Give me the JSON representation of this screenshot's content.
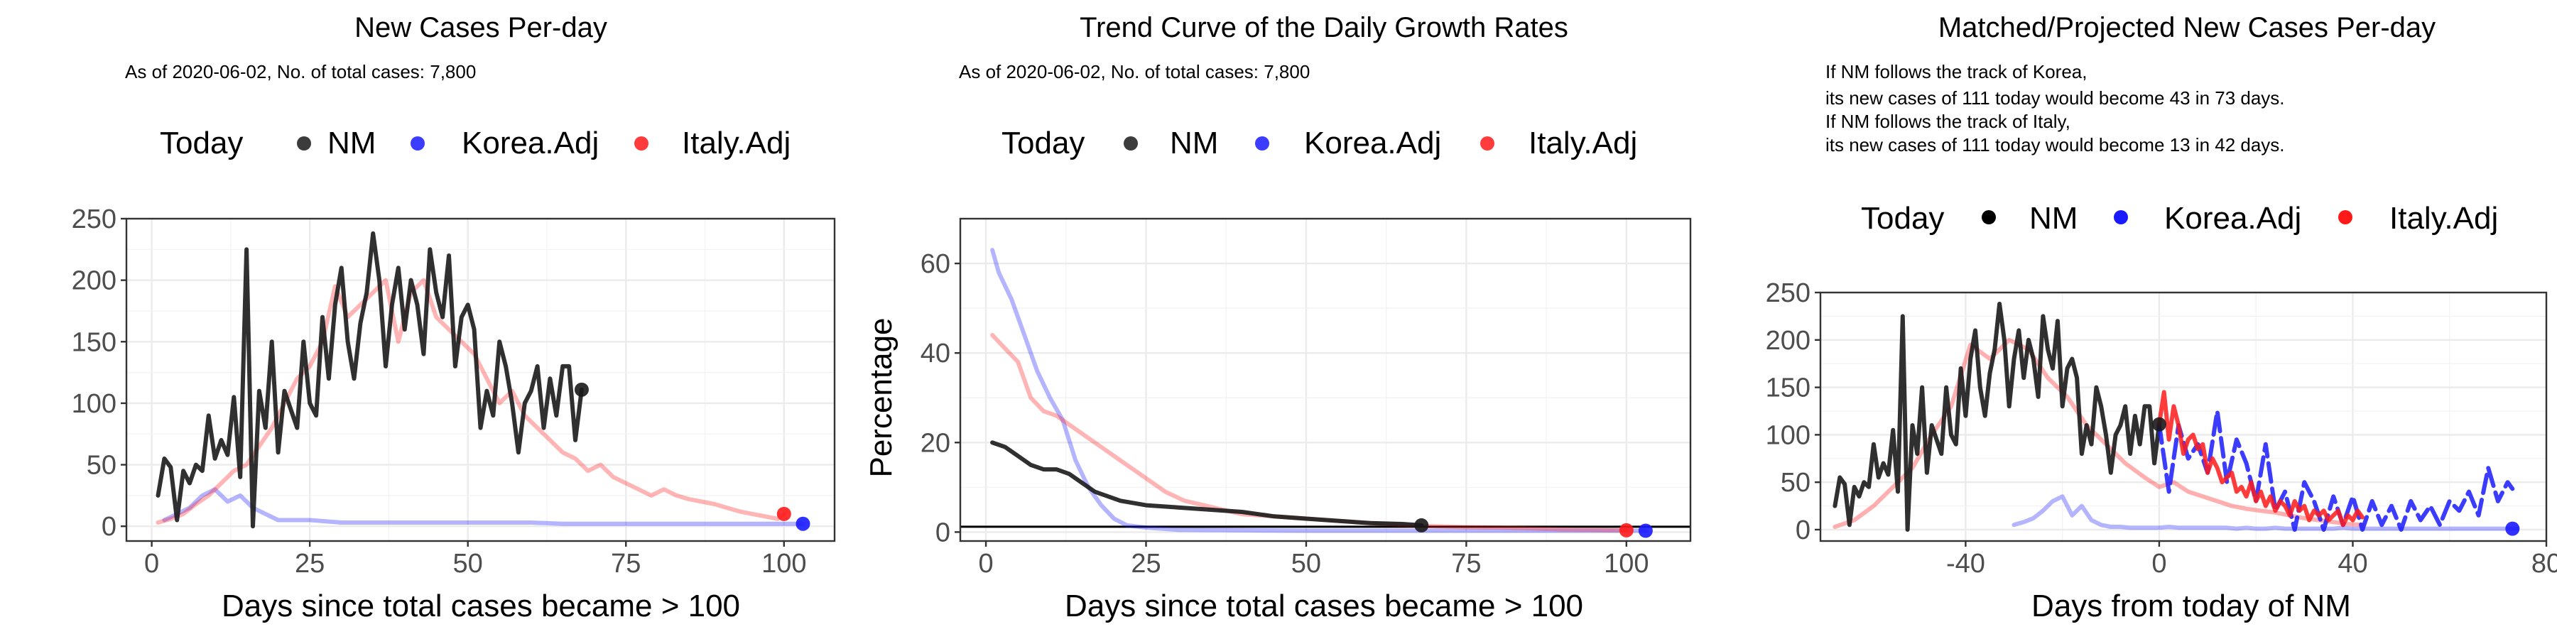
{
  "colors": {
    "nm": "#1a1a1a",
    "korea": "#1a1aff",
    "italy": "#ff1a1a",
    "grid": "#ebebeb",
    "panel_border": "#333333"
  },
  "chart_data": [
    {
      "type": "line",
      "title": "New Cases Per-day",
      "subtitle": "As of 2020-06-02, No. of total cases: 7,800",
      "xlabel": "Days since total cases became > 100",
      "ylabel": "",
      "xlim": [
        -4,
        108
      ],
      "ylim": [
        -12,
        250
      ],
      "xticks": [
        0,
        25,
        50,
        75,
        100
      ],
      "yticks": [
        0,
        50,
        100,
        150,
        200,
        250
      ],
      "grid": true,
      "legend": {
        "title": "Today",
        "position": "top",
        "entries": [
          "NM",
          "Korea.Adj",
          "Italy.Adj"
        ]
      },
      "series": [
        {
          "name": "NM",
          "x": [
            1,
            2,
            3,
            4,
            5,
            6,
            7,
            8,
            9,
            10,
            11,
            12,
            13,
            14,
            15,
            16,
            17,
            18,
            19,
            20,
            21,
            22,
            23,
            24,
            25,
            26,
            27,
            28,
            29,
            30,
            31,
            32,
            33,
            34,
            35,
            36,
            37,
            38,
            39,
            40,
            41,
            42,
            43,
            44,
            45,
            46,
            47,
            48,
            49,
            50,
            51,
            52,
            53,
            54,
            55,
            56,
            57,
            58,
            59,
            60,
            61,
            62,
            63,
            64,
            65,
            66,
            67,
            68
          ],
          "values": [
            25,
            55,
            48,
            5,
            45,
            35,
            50,
            45,
            90,
            55,
            70,
            58,
            105,
            40,
            225,
            0,
            110,
            80,
            150,
            60,
            110,
            95,
            80,
            150,
            100,
            90,
            170,
            120,
            180,
            210,
            150,
            120,
            165,
            190,
            238,
            200,
            130,
            180,
            210,
            160,
            200,
            180,
            140,
            225,
            190,
            170,
            220,
            130,
            170,
            180,
            160,
            80,
            110,
            90,
            150,
            130,
            100,
            60,
            100,
            110,
            130,
            80,
            120,
            90,
            130,
            130,
            70,
            111
          ]
        },
        {
          "name": "Korea.Adj",
          "x": [
            2,
            4,
            6,
            8,
            10,
            12,
            14,
            16,
            18,
            20,
            25,
            30,
            35,
            40,
            45,
            50,
            55,
            60,
            65,
            70,
            75,
            80,
            85,
            90,
            95,
            100,
            103
          ],
          "values": [
            5,
            10,
            15,
            25,
            30,
            20,
            25,
            15,
            10,
            5,
            5,
            3,
            3,
            3,
            3,
            3,
            3,
            3,
            2,
            2,
            2,
            2,
            2,
            2,
            2,
            2,
            2
          ]
        },
        {
          "name": "Italy.Adj",
          "x": [
            1,
            3,
            5,
            7,
            9,
            11,
            13,
            15,
            17,
            19,
            21,
            23,
            25,
            27,
            29,
            31,
            33,
            35,
            37,
            39,
            41,
            43,
            45,
            47,
            49,
            51,
            53,
            55,
            57,
            59,
            61,
            63,
            65,
            67,
            69,
            71,
            73,
            75,
            77,
            79,
            81,
            83,
            85,
            87,
            89,
            91,
            93,
            95,
            97,
            99,
            100
          ],
          "values": [
            3,
            6,
            10,
            18,
            25,
            35,
            45,
            50,
            65,
            80,
            100,
            120,
            130,
            150,
            195,
            170,
            180,
            190,
            200,
            150,
            190,
            200,
            170,
            160,
            150,
            140,
            120,
            100,
            110,
            90,
            80,
            70,
            60,
            55,
            45,
            50,
            40,
            35,
            30,
            25,
            30,
            25,
            22,
            20,
            18,
            15,
            12,
            10,
            8,
            6,
            10
          ]
        }
      ],
      "today_points": [
        {
          "name": "NM",
          "x": 68,
          "y": 111
        },
        {
          "name": "Korea.Adj",
          "x": 103,
          "y": 2
        },
        {
          "name": "Italy.Adj",
          "x": 100,
          "y": 10
        }
      ]
    },
    {
      "type": "line",
      "title": "Trend Curve of the Daily Growth Rates",
      "subtitle": "As of 2020-06-02, No. of total cases: 7,800",
      "xlabel": "Days since total cases became > 100",
      "ylabel": "Percentage",
      "xlim": [
        -4,
        110
      ],
      "ylim": [
        -2,
        70
      ],
      "xticks": [
        0,
        25,
        50,
        75,
        100
      ],
      "yticks": [
        0,
        20,
        40,
        60
      ],
      "grid": true,
      "hline": 1.2,
      "legend": {
        "title": "Today",
        "position": "top",
        "entries": [
          "NM",
          "Korea.Adj",
          "Italy.Adj"
        ]
      },
      "series": [
        {
          "name": "NM",
          "x": [
            1,
            3,
            5,
            7,
            9,
            11,
            13,
            15,
            17,
            19,
            21,
            23,
            25,
            30,
            35,
            40,
            45,
            50,
            55,
            60,
            65,
            68
          ],
          "values": [
            20,
            19,
            17,
            15,
            14,
            14,
            13,
            11,
            9,
            8,
            7,
            6.5,
            6,
            5.5,
            5,
            4.5,
            3.5,
            3,
            2.5,
            2,
            1.8,
            1.5
          ]
        },
        {
          "name": "Korea.Adj",
          "x": [
            1,
            2,
            4,
            6,
            8,
            10,
            12,
            14,
            16,
            18,
            20,
            22,
            25,
            30,
            40,
            50,
            60,
            70,
            80,
            90,
            100,
            103
          ],
          "values": [
            63,
            58,
            52,
            44,
            36,
            30,
            25,
            16,
            10,
            6,
            3,
            1.5,
            1,
            0.5,
            0.4,
            0.3,
            0.3,
            0.3,
            0.3,
            0.3,
            0.3,
            0.3
          ]
        },
        {
          "name": "Italy.Adj",
          "x": [
            1,
            3,
            5,
            7,
            9,
            11,
            13,
            15,
            17,
            19,
            21,
            23,
            25,
            28,
            31,
            34,
            37,
            40,
            45,
            50,
            55,
            60,
            65,
            70,
            75,
            80,
            85,
            90,
            95,
            100
          ],
          "values": [
            44,
            41,
            38,
            30,
            27,
            26,
            24,
            22,
            20,
            18,
            16,
            14,
            12,
            9,
            7,
            6,
            5,
            4,
            3.5,
            3,
            2.5,
            2,
            1.6,
            1.3,
            1.1,
            1,
            0.8,
            0.6,
            0.5,
            0.4
          ]
        }
      ],
      "today_points": [
        {
          "name": "NM",
          "x": 68,
          "y": 1.5
        },
        {
          "name": "Korea.Adj",
          "x": 103,
          "y": 0.3
        },
        {
          "name": "Italy.Adj",
          "x": 100,
          "y": 0.4
        }
      ]
    },
    {
      "type": "line",
      "title": "Matched/Projected New Cases Per-day",
      "annotations": [
        "If NM follows the track of Korea,",
        "its new cases of 111 today would become 43 in 73 days.",
        "If NM follows the track of Italy,",
        "its new cases of 111 today would become 13 in 42 days."
      ],
      "xlabel": "Days from today of NM",
      "ylabel": "",
      "xlim": [
        -70,
        80
      ],
      "ylim": [
        -12,
        250
      ],
      "xticks": [
        -40,
        0,
        40,
        80
      ],
      "yticks": [
        0,
        50,
        100,
        150,
        200,
        250
      ],
      "grid": true,
      "legend": {
        "title": "Today",
        "position": "top",
        "entries": [
          "NM",
          "Korea.Adj",
          "Italy.Adj"
        ]
      },
      "series": [
        {
          "name": "NM",
          "x": [
            -67,
            -66,
            -65,
            -64,
            -63,
            -62,
            -61,
            -60,
            -59,
            -58,
            -57,
            -56,
            -55,
            -54,
            -53,
            -52,
            -51,
            -50,
            -49,
            -48,
            -47,
            -46,
            -45,
            -44,
            -43,
            -42,
            -41,
            -40,
            -39,
            -38,
            -37,
            -36,
            -35,
            -34,
            -33,
            -32,
            -31,
            -30,
            -29,
            -28,
            -27,
            -26,
            -25,
            -24,
            -23,
            -22,
            -21,
            -20,
            -19,
            -18,
            -17,
            -16,
            -15,
            -14,
            -13,
            -12,
            -11,
            -10,
            -9,
            -8,
            -7,
            -6,
            -5,
            -4,
            -3,
            -2,
            -1,
            0
          ],
          "values": [
            25,
            55,
            48,
            5,
            45,
            35,
            50,
            45,
            90,
            55,
            70,
            58,
            105,
            40,
            225,
            0,
            110,
            80,
            150,
            60,
            110,
            95,
            80,
            150,
            100,
            90,
            170,
            120,
            180,
            210,
            150,
            120,
            165,
            190,
            238,
            200,
            130,
            180,
            210,
            160,
            200,
            180,
            140,
            225,
            190,
            170,
            220,
            130,
            170,
            180,
            160,
            80,
            110,
            90,
            150,
            130,
            100,
            60,
            100,
            110,
            130,
            80,
            120,
            90,
            130,
            130,
            70,
            111
          ]
        },
        {
          "name": "Korea.Adj",
          "x": [
            -30,
            -28,
            -26,
            -24,
            -22,
            -20,
            -18,
            -16,
            -14,
            -12,
            -10,
            -8,
            -6,
            -4,
            -2,
            0,
            2,
            4,
            6,
            8,
            10,
            12,
            14,
            16,
            18,
            20,
            22,
            24,
            26,
            28,
            30,
            32,
            34,
            36,
            38,
            40,
            42,
            44,
            46,
            48,
            50,
            52,
            54,
            56,
            58,
            60,
            62,
            64,
            66,
            68,
            70,
            72,
            74
          ],
          "values": [
            5,
            8,
            12,
            20,
            30,
            35,
            15,
            25,
            10,
            5,
            3,
            3,
            2,
            2,
            2,
            2,
            3,
            2,
            2,
            2,
            2,
            2,
            2,
            1,
            2,
            1,
            1,
            2,
            1,
            1,
            1,
            1,
            1,
            1,
            2,
            1,
            1,
            1,
            1,
            1,
            1,
            1,
            1,
            1,
            1,
            1,
            1,
            1,
            1,
            1,
            1,
            1,
            1
          ]
        },
        {
          "name": "Korea.Adj (projected)",
          "x": [
            0,
            2,
            4,
            6,
            8,
            10,
            12,
            14,
            16,
            18,
            20,
            22,
            24,
            26,
            28,
            30,
            32,
            34,
            36,
            38,
            40,
            42,
            44,
            46,
            48,
            50,
            52,
            54,
            56,
            58,
            60,
            62,
            64,
            66,
            68,
            70,
            72,
            73
          ],
          "values": [
            111,
            40,
            110,
            75,
            90,
            60,
            125,
            50,
            95,
            70,
            30,
            90,
            20,
            40,
            0,
            50,
            30,
            0,
            35,
            5,
            35,
            0,
            30,
            5,
            25,
            0,
            30,
            10,
            25,
            5,
            30,
            20,
            40,
            15,
            65,
            30,
            50,
            43
          ]
        },
        {
          "name": "Italy.Adj",
          "x": [
            -67,
            -63,
            -59,
            -55,
            -51,
            -47,
            -43,
            -39,
            -35,
            -31,
            -27,
            -23,
            -19,
            -15,
            -11,
            -7,
            -3,
            0,
            3,
            6,
            9,
            12,
            15,
            18,
            21,
            24,
            27,
            30,
            33,
            36,
            39,
            42
          ],
          "values": [
            3,
            10,
            25,
            45,
            65,
            100,
            130,
            195,
            180,
            200,
            190,
            160,
            140,
            110,
            90,
            70,
            55,
            45,
            50,
            40,
            35,
            30,
            25,
            22,
            20,
            18,
            15,
            12,
            10,
            8,
            6,
            5
          ]
        },
        {
          "name": "Italy.Adj (projected)",
          "x": [
            0,
            1,
            2,
            3,
            4,
            5,
            6,
            7,
            8,
            9,
            10,
            11,
            12,
            13,
            14,
            15,
            16,
            17,
            18,
            19,
            20,
            21,
            22,
            23,
            24,
            25,
            26,
            27,
            28,
            29,
            30,
            31,
            32,
            33,
            34,
            35,
            36,
            37,
            38,
            39,
            40,
            41,
            42
          ],
          "values": [
            111,
            145,
            95,
            130,
            110,
            80,
            95,
            100,
            85,
            90,
            60,
            75,
            65,
            50,
            55,
            60,
            40,
            45,
            35,
            50,
            30,
            40,
            25,
            35,
            20,
            30,
            25,
            15,
            30,
            20,
            25,
            10,
            20,
            15,
            20,
            10,
            15,
            20,
            5,
            15,
            10,
            20,
            13
          ]
        }
      ],
      "today_points": [
        {
          "name": "NM",
          "x": 0,
          "y": 111
        },
        {
          "name": "Korea.Adj",
          "x": 73,
          "y": 1
        }
      ]
    }
  ]
}
